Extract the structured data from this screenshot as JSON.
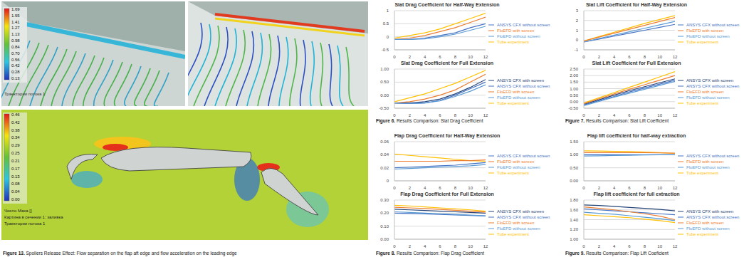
{
  "cfd_panels": {
    "top_left": {
      "colorbar_labels": [
        "1.69",
        "1.55",
        "1.41",
        "1.27",
        "1.13",
        "0.98",
        "0.84",
        "0.70",
        "0.56",
        "0.42",
        "0.28",
        "0.13"
      ],
      "caption_lines": [
        "Траектории потока 1"
      ]
    },
    "bottom": {
      "colorbar_labels": [
        "0.46",
        "0.42",
        "0.38",
        "0.34",
        "0.29",
        "0.25",
        "0.21",
        "0.17",
        "0.13",
        "0.08",
        "0.04",
        "0.00"
      ],
      "caption_lines": [
        "Число Маха []",
        "Картина в сечении 1: заливка",
        "Траектории потока 1"
      ]
    },
    "figure_caption": "Figure 13. Spoilers Release Effect: Flow separation on the flap aft edge and flow acceleration on the leading edge"
  },
  "figure_captions": [
    "Figure 6. Results Comparison: Slat Drag Coefficient",
    "Figure 7. Results Comparison: Slat Lift Coefficient",
    "Figure 8. Results Comparison: Flap Drag Coefficient",
    "Figure 9. Results Comparison: Flap Lift Coeficient"
  ],
  "chart_data": [
    {
      "type": "line",
      "title": "Slat Drag Coefficient for Half-Way Extension",
      "grid": true,
      "legend": "right",
      "line_style": "solid",
      "x": [
        0,
        2,
        4,
        6,
        8,
        10,
        12
      ],
      "xlim": [
        0,
        12
      ],
      "xticks": [
        0,
        2,
        4,
        6,
        8,
        10,
        12
      ],
      "ylim": [
        -0.5,
        1
      ],
      "yticks": [
        -0.5,
        0,
        0.5,
        1
      ],
      "series": [
        {
          "name": "ANSYS CFX without screen",
          "color": "#4472c4",
          "values": [
            -0.1,
            -0.1,
            -0.05,
            0.05,
            0.15,
            0.35,
            0.5
          ]
        },
        {
          "name": "Tube experiment",
          "color": "#ffc000",
          "values": [
            -0.05,
            0.05,
            0.15,
            0.3,
            0.5,
            0.7,
            0.9
          ]
        },
        {
          "name": "FloEFD with screen",
          "color": "#ed7d31",
          "values": [
            -0.1,
            -0.05,
            0.05,
            0.2,
            0.35,
            0.55,
            0.75
          ]
        },
        {
          "name": "FloEFD without screen",
          "color": "#5b9bd5",
          "values": [
            -0.1,
            -0.1,
            -0.08,
            0,
            0.1,
            0.25,
            0.4
          ]
        }
      ]
    },
    {
      "type": "line",
      "title": "Slat Lift Coefficient for Half-Way Extension",
      "grid": true,
      "legend": "right",
      "line_style": "solid",
      "x": [
        0,
        2,
        4,
        6,
        8,
        10,
        12
      ],
      "xlim": [
        0,
        12
      ],
      "xticks": [
        0,
        2,
        4,
        6,
        8,
        10,
        12
      ],
      "ylim": [
        -1,
        3
      ],
      "yticks": [
        -1,
        0,
        1,
        2,
        3
      ],
      "series": [
        {
          "name": "ANSYS CFX without screen",
          "color": "#4472c4",
          "values": [
            -0.2,
            0.1,
            0.4,
            0.7,
            1.0,
            1.3,
            1.6
          ]
        },
        {
          "name": "Tube experiment",
          "color": "#ffc000",
          "values": [
            -0.1,
            0.35,
            0.8,
            1.25,
            1.7,
            2.1,
            2.5
          ]
        },
        {
          "name": "FloEFD with screen",
          "color": "#ed7d31",
          "values": [
            -0.1,
            0.3,
            0.7,
            1.1,
            1.5,
            1.9,
            2.3
          ]
        },
        {
          "name": "FloEFD without screen",
          "color": "#5b9bd5",
          "values": [
            -0.2,
            0.15,
            0.5,
            0.85,
            1.2,
            1.55,
            1.9
          ]
        }
      ]
    },
    {
      "type": "line",
      "title": "Slat Drag Coefficient for Full Extension",
      "grid": true,
      "legend": "right",
      "line_style": "solid",
      "x": [
        0,
        2,
        4,
        6,
        8,
        10,
        12
      ],
      "xlim": [
        0,
        12
      ],
      "xticks": [
        0,
        2,
        4,
        6,
        8,
        10,
        12
      ],
      "ylim": [
        -0.5,
        1
      ],
      "yticks": [
        {
          "value": -0.5,
          "label": "-0.50"
        },
        {
          "value": 0,
          "label": "0.00"
        },
        {
          "value": 0.5,
          "label": "0.50"
        },
        {
          "value": 1,
          "label": "1.00"
        }
      ],
      "series": [
        {
          "name": "ANSYS CFX with screen",
          "color": "#264478",
          "values": [
            -0.3,
            -0.3,
            -0.25,
            -0.15,
            0.05,
            0.3,
            0.6
          ]
        },
        {
          "name": "ANSYS CFX without screen",
          "color": "#4472c4",
          "values": [
            -0.3,
            -0.32,
            -0.3,
            -0.2,
            0,
            0.25,
            0.5
          ]
        },
        {
          "name": "Tube experiment",
          "color": "#ffc000",
          "values": [
            -0.25,
            -0.1,
            0.05,
            0.25,
            0.45,
            0.7,
            0.95
          ]
        },
        {
          "name": "FloEFD with screen",
          "color": "#ed7d31",
          "values": [
            -0.3,
            -0.25,
            -0.15,
            0,
            0.2,
            0.5,
            0.8
          ]
        },
        {
          "name": "FloEFD without screen",
          "color": "#5b9bd5",
          "values": [
            -0.3,
            -0.32,
            -0.3,
            -0.22,
            -0.05,
            0.15,
            0.4
          ]
        }
      ]
    },
    {
      "type": "line",
      "title": "Slat Lift Coefficient for Full Extension",
      "grid": true,
      "legend": "right",
      "line_style": "solid",
      "x": [
        0,
        2,
        4,
        6,
        8,
        10,
        12
      ],
      "xlim": [
        0,
        12
      ],
      "xticks": [
        0,
        2,
        4,
        6,
        8,
        10,
        12
      ],
      "ylim": [
        -0.5,
        2.5
      ],
      "yticks": [
        {
          "value": -0.5,
          "label": "-0.50"
        },
        {
          "value": 0,
          "label": "0.00"
        },
        {
          "value": 0.5,
          "label": "0.50"
        },
        {
          "value": 1,
          "label": "1.00"
        },
        {
          "value": 1.5,
          "label": "1.50"
        },
        {
          "value": 2,
          "label": "2.00"
        },
        {
          "value": 2.5,
          "label": "2.50"
        }
      ],
      "series": [
        {
          "name": "ANSYS CFX with screen",
          "color": "#264478",
          "values": [
            -0.2,
            0.15,
            0.5,
            0.85,
            1.15,
            1.45,
            1.75
          ]
        },
        {
          "name": "ANSYS CFX without screen",
          "color": "#4472c4",
          "values": [
            -0.25,
            0.08,
            0.4,
            0.75,
            1.05,
            1.35,
            1.65
          ]
        },
        {
          "name": "Tube experiment",
          "color": "#ffc000",
          "values": [
            -0.1,
            0.3,
            0.7,
            1.1,
            1.5,
            1.9,
            2.3
          ]
        },
        {
          "name": "FloEFD with screen",
          "color": "#ed7d31",
          "values": [
            -0.15,
            0.22,
            0.6,
            0.95,
            1.3,
            1.65,
            2.0
          ]
        },
        {
          "name": "FloEFD without screen",
          "color": "#5b9bd5",
          "values": [
            -0.3,
            0.02,
            0.35,
            0.65,
            0.95,
            1.25,
            1.55
          ]
        }
      ]
    },
    {
      "type": "line",
      "title": "Flap Drag Coefficient for Half-Way Extension",
      "grid": true,
      "legend": "right",
      "line_style": "solid",
      "x": [
        0,
        2,
        4,
        6,
        8,
        10,
        12
      ],
      "xlim": [
        0,
        12
      ],
      "xticks": [
        0,
        2,
        4,
        6,
        8,
        10,
        12
      ],
      "ylim": [
        0,
        0.06
      ],
      "yticks": [
        0,
        0.02,
        0.04,
        0.06
      ],
      "series": [
        {
          "name": "ANSYS CFX without screen",
          "color": "#4472c4",
          "values": [
            0.02,
            0.021,
            0.022,
            0.023,
            0.024,
            0.026,
            0.028
          ]
        },
        {
          "name": "Tube experiment",
          "color": "#ffc000",
          "values": [
            0.041,
            0.039,
            0.037,
            0.035,
            0.033,
            0.031,
            0.03
          ]
        },
        {
          "name": "FloEFD with screen",
          "color": "#ed7d31",
          "values": [
            0.03,
            0.03,
            0.03,
            0.03,
            0.031,
            0.031,
            0.032
          ]
        },
        {
          "name": "FloEFD without screen",
          "color": "#5b9bd5",
          "values": [
            0.018,
            0.019,
            0.02,
            0.021,
            0.022,
            0.023,
            0.025
          ]
        }
      ]
    },
    {
      "type": "line",
      "title": "Flap lift coefficient for half-way extraction",
      "grid": true,
      "legend": "right",
      "line_style": "solid",
      "x": [
        0,
        2,
        4,
        6,
        8,
        10,
        12
      ],
      "xlim": [
        0,
        12
      ],
      "xticks": [
        0,
        2,
        4,
        6,
        8,
        10,
        12
      ],
      "ylim": [
        0,
        1.5
      ],
      "yticks": [
        {
          "value": 0,
          "label": "0.00"
        },
        {
          "value": 0.5,
          "label": "0.50"
        },
        {
          "value": 1,
          "label": "1.00"
        },
        {
          "value": 1.5,
          "label": "1.50"
        }
      ],
      "series": [
        {
          "name": "ANSYS CFX without screen",
          "color": "#4472c4",
          "values": [
            1.0,
            1.0,
            1.0,
            1.0,
            1.0,
            1.0,
            1.0
          ]
        },
        {
          "name": "Tube experiment",
          "color": "#ffc000",
          "values": [
            1.15,
            1.14,
            1.13,
            1.12,
            1.1,
            1.08,
            1.05
          ]
        },
        {
          "name": "FloEFD with screen",
          "color": "#ed7d31",
          "values": [
            1.08,
            1.08,
            1.08,
            1.08,
            1.08,
            1.07,
            1.06
          ]
        },
        {
          "name": "FloEFD without screen",
          "color": "#5b9bd5",
          "values": [
            0.95,
            0.96,
            0.97,
            0.98,
            0.99,
            1.0,
            1.0
          ]
        }
      ]
    },
    {
      "type": "line",
      "title": "Flap Drag Coefficient for Full Extension",
      "grid": true,
      "legend": "right",
      "line_style": "solid",
      "x": [
        0,
        2,
        4,
        6,
        8,
        10,
        12
      ],
      "xlim": [
        0,
        12
      ],
      "xticks": [
        0,
        2,
        4,
        6,
        8,
        10,
        12
      ],
      "ylim": [
        0,
        0.3
      ],
      "yticks": [
        {
          "value": 0,
          "label": "0.00"
        },
        {
          "value": 0.1,
          "label": "0.10"
        },
        {
          "value": 0.2,
          "label": "0.20"
        },
        {
          "value": 0.3,
          "label": "0.30"
        }
      ],
      "series": [
        {
          "name": "ANSYS CFX with screen",
          "color": "#264478",
          "values": [
            0.23,
            0.225,
            0.22,
            0.215,
            0.21,
            0.205,
            0.2
          ]
        },
        {
          "name": "ANSYS CFX without screen",
          "color": "#4472c4",
          "values": [
            0.2,
            0.197,
            0.194,
            0.19,
            0.186,
            0.182,
            0.178
          ]
        },
        {
          "name": "Tube experiment",
          "color": "#ffc000",
          "values": [
            0.26,
            0.255,
            0.248,
            0.24,
            0.232,
            0.225,
            0.215
          ]
        },
        {
          "name": "FloEFD with screen",
          "color": "#ed7d31",
          "values": [
            0.245,
            0.24,
            0.235,
            0.228,
            0.222,
            0.215,
            0.208
          ]
        },
        {
          "name": "FloEFD without screen",
          "color": "#5b9bd5",
          "values": [
            0.21,
            0.205,
            0.2,
            0.195,
            0.19,
            0.185,
            0.18
          ]
        }
      ]
    },
    {
      "type": "line",
      "title": "Flap lift coefficient for full extraction",
      "grid": true,
      "legend": "right",
      "line_style": "solid",
      "x": [
        0,
        2,
        4,
        6,
        8,
        10,
        12
      ],
      "xlim": [
        0,
        12
      ],
      "xticks": [
        0,
        2,
        4,
        6,
        8,
        10,
        12
      ],
      "ylim": [
        1,
        1.8
      ],
      "yticks": [
        {
          "value": 1,
          "label": "1.00"
        },
        {
          "value": 1.2,
          "label": "1.20"
        },
        {
          "value": 1.4,
          "label": "1.40"
        },
        {
          "value": 1.6,
          "label": "1.60"
        },
        {
          "value": 1.8,
          "label": "1.80"
        }
      ],
      "series": [
        {
          "name": "ANSYS CFX with screen",
          "color": "#264478",
          "values": [
            1.7,
            1.69,
            1.67,
            1.65,
            1.63,
            1.61,
            1.58
          ]
        },
        {
          "name": "ANSYS CFX without screen",
          "color": "#4472c4",
          "values": [
            1.62,
            1.6,
            1.58,
            1.56,
            1.54,
            1.52,
            1.5
          ]
        },
        {
          "name": "Tube experiment",
          "color": "#ffc000",
          "values": [
            1.5,
            1.48,
            1.46,
            1.44,
            1.41,
            1.38,
            1.34
          ]
        },
        {
          "name": "FloEFD with screen",
          "color": "#ed7d31",
          "values": [
            1.66,
            1.63,
            1.6,
            1.56,
            1.52,
            1.47,
            1.4
          ]
        },
        {
          "name": "FloEFD without screen",
          "color": "#5b9bd5",
          "values": [
            1.55,
            1.53,
            1.51,
            1.48,
            1.45,
            1.42,
            1.38
          ]
        }
      ]
    }
  ]
}
